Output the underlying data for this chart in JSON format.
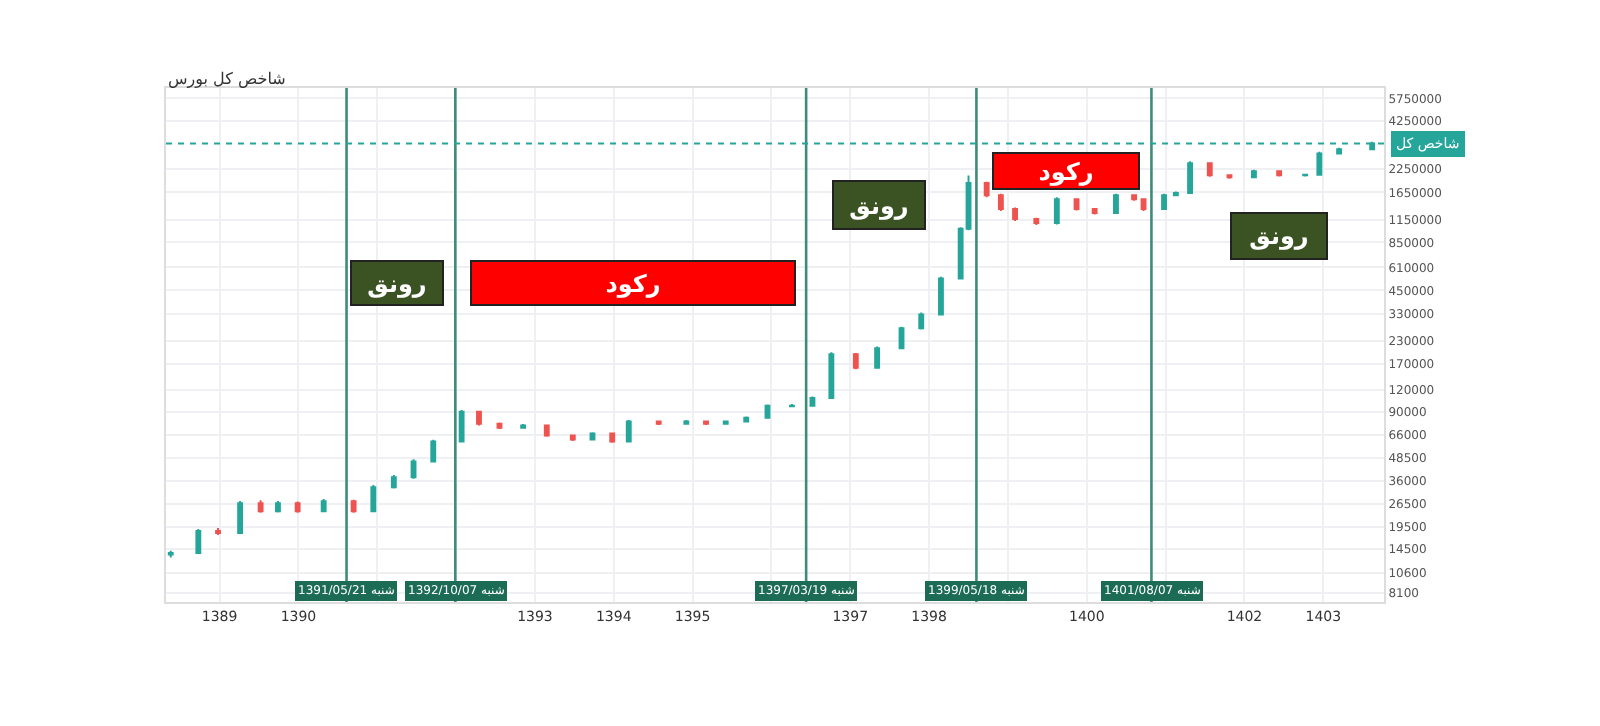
{
  "chart_data": {
    "type": "candlestick",
    "title": "شاخص کل بورس",
    "x": [
      1388.38,
      1388.73,
      1388.98,
      1389.26,
      1389.52,
      1389.74,
      1389.99,
      1390.32,
      1390.7,
      1390.95,
      1391.21,
      1391.46,
      1391.71,
      1392.07,
      1392.29,
      1392.55,
      1392.85,
      1393.15,
      1393.48,
      1393.73,
      1393.98,
      1394.19,
      1394.57,
      1394.92,
      1395.17,
      1395.42,
      1395.68,
      1395.95,
      1396.26,
      1396.52,
      1396.76,
      1397.07,
      1397.34,
      1397.65,
      1397.9,
      1398.15,
      1398.4,
      1398.5,
      1398.73,
      1398.91,
      1399.09,
      1399.36,
      1399.62,
      1399.87,
      1400.1,
      1400.37,
      1400.6,
      1400.72,
      1400.98,
      1401.13,
      1401.31,
      1401.56,
      1401.81,
      1402.12,
      1402.44,
      1402.77,
      1402.95,
      1403.2,
      1403.62
    ],
    "ohlc": [
      [
        13500,
        14200,
        13000,
        13800
      ],
      [
        13800,
        19000,
        13600,
        18500
      ],
      [
        18500,
        19200,
        17500,
        18000
      ],
      [
        18000,
        27500,
        17800,
        26700
      ],
      [
        26700,
        27800,
        23500,
        24000
      ],
      [
        24000,
        27500,
        23600,
        26700
      ],
      [
        26700,
        27300,
        23500,
        24000
      ],
      [
        24000,
        28200,
        23700,
        27400
      ],
      [
        27400,
        28000,
        23500,
        24000
      ],
      [
        24000,
        34000,
        23800,
        33000
      ],
      [
        33000,
        38800,
        32500,
        37700
      ],
      [
        37700,
        47800,
        37000,
        46500
      ],
      [
        46500,
        62000,
        46000,
        60500
      ],
      [
        60500,
        92000,
        60000,
        90000
      ],
      [
        90000,
        91000,
        75000,
        76700
      ],
      [
        76700,
        78000,
        71500,
        72800
      ],
      [
        72800,
        76500,
        71800,
        74800
      ],
      [
        74800,
        75500,
        64500,
        65600
      ],
      [
        65600,
        66500,
        61000,
        62100
      ],
      [
        62100,
        68500,
        61500,
        67300
      ],
      [
        67300,
        68000,
        59500,
        60500
      ],
      [
        60500,
        80500,
        60000,
        78900
      ],
      [
        78900,
        80000,
        75500,
        76700
      ],
      [
        76700,
        80500,
        76000,
        78900
      ],
      [
        78900,
        79500,
        75500,
        76700
      ],
      [
        76700,
        80000,
        76000,
        78900
      ],
      [
        78900,
        84500,
        78000,
        83000
      ],
      [
        83000,
        99000,
        82500,
        97300
      ],
      [
        96800,
        99500,
        95500,
        97300
      ],
      [
        97300,
        110000,
        96500,
        108000
      ],
      [
        108000,
        198000,
        107000,
        193000
      ],
      [
        193000,
        196000,
        158000,
        161000
      ],
      [
        161000,
        214000,
        159000,
        209000
      ],
      [
        209000,
        278000,
        207000,
        272000
      ],
      [
        272000,
        335000,
        268000,
        327000
      ],
      [
        327000,
        540000,
        322000,
        526000
      ],
      [
        526000,
        1040000,
        520000,
        1018000
      ],
      [
        1018000,
        2070000,
        1000000,
        1870000
      ],
      [
        1870000,
        1900000,
        1550000,
        1590000
      ],
      [
        1590000,
        1620000,
        1290000,
        1325000
      ],
      [
        1325000,
        1350000,
        1130000,
        1160000
      ],
      [
        1160000,
        1180000,
        1070000,
        1100000
      ],
      [
        1100000,
        1550000,
        1080000,
        1510000
      ],
      [
        1510000,
        1530000,
        1300000,
        1325000
      ],
      [
        1325000,
        1340000,
        1230000,
        1256000
      ],
      [
        1256000,
        1620000,
        1240000,
        1590000
      ],
      [
        1590000,
        1610000,
        1480000,
        1510000
      ],
      [
        1510000,
        1530000,
        1290000,
        1325000
      ],
      [
        1325000,
        1620000,
        1310000,
        1590000
      ],
      [
        1590000,
        1670000,
        1570000,
        1636000
      ],
      [
        1636000,
        2500000,
        1620000,
        2430000
      ],
      [
        2430000,
        2450000,
        2030000,
        2075000
      ],
      [
        2075000,
        2100000,
        1980000,
        2020000
      ],
      [
        2020000,
        2230000,
        2000000,
        2187000
      ],
      [
        2187000,
        2210000,
        2040000,
        2075000
      ],
      [
        2075000,
        2110000,
        2040000,
        2090000
      ],
      [
        2090000,
        2830000,
        2070000,
        2770000
      ],
      [
        2770000,
        2990000,
        2740000,
        2925000
      ],
      [
        2925000,
        3230000,
        2900000,
        3160000
      ]
    ],
    "colors": [
      "#26a69a",
      "#26a69a",
      "#ef5350",
      "#26a69a",
      "#ef5350",
      "#26a69a",
      "#ef5350",
      "#26a69a",
      "#ef5350",
      "#26a69a",
      "#26a69a",
      "#26a69a",
      "#26a69a",
      "#26a69a",
      "#ef5350",
      "#ef5350",
      "#26a69a",
      "#ef5350",
      "#ef5350",
      "#26a69a",
      "#ef5350",
      "#26a69a",
      "#ef5350",
      "#26a69a",
      "#ef5350",
      "#26a69a",
      "#26a69a",
      "#26a69a",
      "#26a69a",
      "#26a69a",
      "#26a69a",
      "#ef5350",
      "#26a69a",
      "#26a69a",
      "#26a69a",
      "#26a69a",
      "#26a69a",
      "#26a69a",
      "#ef5350",
      "#ef5350",
      "#ef5350",
      "#ef5350",
      "#26a69a",
      "#ef5350",
      "#ef5350",
      "#26a69a",
      "#ef5350",
      "#ef5350",
      "#26a69a",
      "#26a69a",
      "#26a69a",
      "#ef5350",
      "#ef5350",
      "#26a69a",
      "#ef5350",
      "#26a69a",
      "#26a69a",
      "#26a69a",
      "#26a69a"
    ],
    "log": true,
    "xlim": [
      1388.32,
      1403.77
    ],
    "xticks": [
      1389,
      1390,
      {
        "value": 1391,
        "label": null
      },
      {
        "value": 1392,
        "label": null
      },
      1393,
      1394,
      1395,
      {
        "value": 1396,
        "label": null
      },
      1397,
      1398,
      {
        "value": 1399,
        "label": null
      },
      1400,
      {
        "value": 1401,
        "label": null
      },
      1402,
      1403
    ],
    "ylim": [
      7200,
      6600000
    ],
    "yticks": [
      8100,
      10600,
      14500,
      19500,
      26500,
      36000,
      48500,
      66000,
      90000,
      120000,
      170000,
      230000,
      330000,
      450000,
      610000,
      850000,
      1150000,
      1650000,
      2250000,
      4250000,
      5750000
    ],
    "grid": true,
    "ref_lines": [
      {
        "axis": "x",
        "value": 1390.61,
        "label": "شنبه 1391/05/21",
        "color": "#3d8c7a"
      },
      {
        "axis": "x",
        "value": 1391.99,
        "label": "شنبه 1392/10/07",
        "color": "#3d8c7a"
      },
      {
        "axis": "x",
        "value": 1396.44,
        "label": "شنبه 1397/03/19",
        "color": "#3d8c7a"
      },
      {
        "axis": "x",
        "value": 1398.6,
        "label": "شنبه 1399/05/18",
        "color": "#3d8c7a"
      },
      {
        "axis": "x",
        "value": 1400.82,
        "label": "شنبه 1401/08/07",
        "color": "#3d8c7a"
      },
      {
        "axis": "y",
        "value": 3160000,
        "label": "شاخص کل",
        "color": "#26a69a",
        "line_style": "dotted"
      }
    ],
    "annotations": [
      "رونق",
      "رکود",
      "رونق",
      "رکود",
      "رونق"
    ]
  }
}
